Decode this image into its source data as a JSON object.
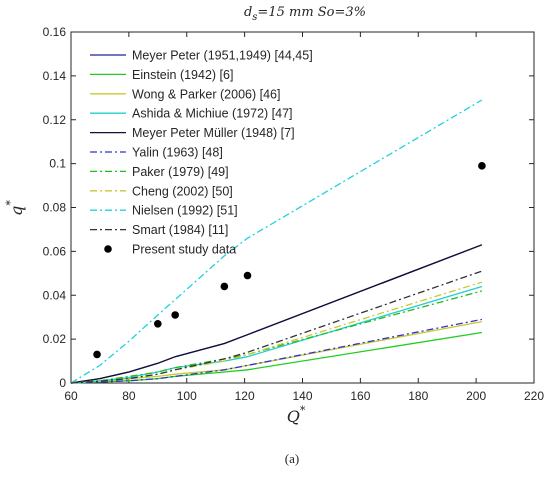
{
  "chart_data": {
    "type": "line",
    "title_main": "d",
    "title_sub": "s",
    "title_rest": "=15 mm So=3%",
    "xlabel": "Q",
    "xlabel_sup": "*",
    "ylabel": "q",
    "ylabel_sup": "*",
    "xlim": [
      60,
      220
    ],
    "ylim": [
      0,
      0.16
    ],
    "xticks": [
      "60",
      "80",
      "100",
      "120",
      "140",
      "160",
      "180",
      "200",
      "220"
    ],
    "yticks": [
      "0",
      "0.02",
      "0.04",
      "0.06",
      "0.08",
      "0.1",
      "0.12",
      "0.14",
      "0.16"
    ],
    "legend_position": "top-left",
    "caption": "(a)",
    "series": [
      {
        "name": "Meyer Peter (1951,1949) [44,45]",
        "color": "#2020a0",
        "dash": "solid",
        "x": [
          60,
          70,
          80,
          90,
          96,
          113,
          121,
          202
        ],
        "y": [
          0.0,
          0.002,
          0.005,
          0.009,
          0.012,
          0.018,
          0.022,
          0.063
        ]
      },
      {
        "name": "Einstein (1942) [6]",
        "color": "#22cc22",
        "dash": "solid",
        "x": [
          60,
          70,
          80,
          90,
          96,
          113,
          121,
          202
        ],
        "y": [
          0.0,
          0.0005,
          0.001,
          0.002,
          0.003,
          0.005,
          0.006,
          0.023
        ]
      },
      {
        "name": "Wong & Parker (2006) [46]",
        "color": "#c8c830",
        "dash": "solid",
        "x": [
          60,
          70,
          80,
          90,
          96,
          113,
          121,
          202
        ],
        "y": [
          0.0,
          0.0008,
          0.002,
          0.003,
          0.004,
          0.006,
          0.008,
          0.028
        ]
      },
      {
        "name": "Ashida & Michiue (1972) [47]",
        "color": "#20d0d0",
        "dash": "solid",
        "x": [
          60,
          70,
          80,
          90,
          96,
          113,
          121,
          202
        ],
        "y": [
          0.0,
          0.001,
          0.0025,
          0.005,
          0.007,
          0.01,
          0.012,
          0.044
        ]
      },
      {
        "name": "Meyer Peter Müller (1948) [7]",
        "color": "#111133",
        "dash": "solid",
        "x": [
          60,
          70,
          80,
          90,
          96,
          113,
          121,
          202
        ],
        "y": [
          0.0,
          0.002,
          0.005,
          0.009,
          0.012,
          0.018,
          0.022,
          0.063
        ]
      },
      {
        "name": "Yalin (1963) [48]",
        "color": "#3333cc",
        "dash": "dashdot",
        "x": [
          60,
          70,
          80,
          90,
          96,
          113,
          121,
          202
        ],
        "y": [
          0.0,
          0.0004,
          0.001,
          0.002,
          0.003,
          0.006,
          0.008,
          0.029
        ]
      },
      {
        "name": "Paker (1979) [49]",
        "color": "#22bb22",
        "dash": "dashdot",
        "x": [
          60,
          70,
          80,
          90,
          96,
          113,
          121,
          202
        ],
        "y": [
          0.0,
          0.001,
          0.003,
          0.005,
          0.007,
          0.011,
          0.013,
          0.042
        ]
      },
      {
        "name": "Cheng (2002) [50]",
        "color": "#c8c830",
        "dash": "dashdot",
        "x": [
          60,
          70,
          80,
          90,
          96,
          113,
          121,
          202
        ],
        "y": [
          0.0,
          0.0008,
          0.002,
          0.004,
          0.006,
          0.01,
          0.013,
          0.046
        ]
      },
      {
        "name": "Nielsen (1992) [51]",
        "color": "#20d0e0",
        "dash": "dashdot",
        "x": [
          60,
          70,
          80,
          90,
          96,
          113,
          121,
          202
        ],
        "y": [
          0.0,
          0.008,
          0.019,
          0.031,
          0.038,
          0.058,
          0.066,
          0.129
        ]
      },
      {
        "name": "Smart (1984) [11]",
        "color": "#333333",
        "dash": "dashdot",
        "x": [
          60,
          70,
          80,
          90,
          96,
          113,
          121,
          202
        ],
        "y": [
          0.0,
          0.0008,
          0.002,
          0.004,
          0.006,
          0.011,
          0.014,
          0.051
        ]
      },
      {
        "name": "Present study data",
        "color": "#000000",
        "dash": "marker",
        "x": [
          69,
          90,
          96,
          113,
          121,
          202
        ],
        "y": [
          0.013,
          0.027,
          0.031,
          0.044,
          0.049,
          0.099
        ]
      }
    ]
  }
}
